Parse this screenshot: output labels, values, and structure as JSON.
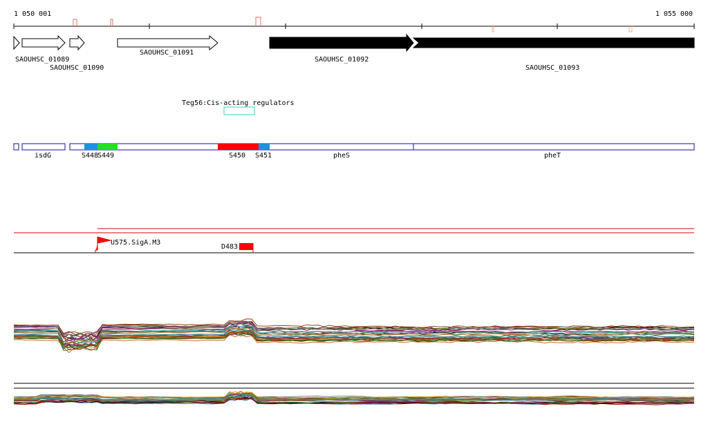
{
  "ruler": {
    "start": "1 050 001",
    "end": "1 055 000"
  },
  "genes": [
    "SAOUHSC_01089",
    "SAOUHSC_01090",
    "SAOUHSC_01091",
    "SAOUHSC_01092",
    "SAOUHSC_01093"
  ],
  "regulator": "Teg56:Cis-acting regulators",
  "regions": [
    "isdG",
    "S448",
    "S449",
    "S450",
    "S451",
    "pheS",
    "pheT"
  ],
  "features": [
    "U575.SigA.M3",
    "D483"
  ]
}
